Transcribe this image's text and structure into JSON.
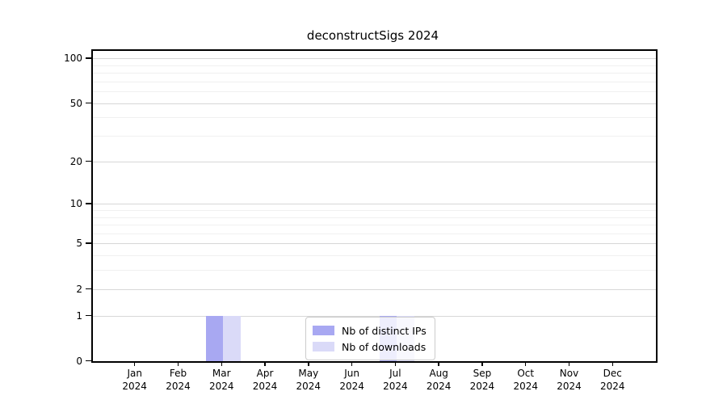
{
  "chart_data": {
    "type": "bar",
    "title": "deconstructSigs 2024",
    "x": {
      "months": [
        "Jan",
        "Feb",
        "Mar",
        "Apr",
        "May",
        "Jun",
        "Jul",
        "Aug",
        "Sep",
        "Oct",
        "Nov",
        "Dec"
      ],
      "year": "2024"
    },
    "series": [
      {
        "name": "Nb of distinct IPs",
        "color": "#a8a8f2",
        "values": [
          0,
          0,
          1,
          0,
          0,
          0,
          1,
          0,
          0,
          0,
          0,
          0
        ]
      },
      {
        "name": "Nb of downloads",
        "color": "#dadaf8",
        "values": [
          0,
          0,
          1,
          0,
          0,
          0,
          1,
          0,
          0,
          0,
          0,
          0
        ]
      }
    ],
    "y_scale": "log1p",
    "ylim": [
      0,
      100
    ],
    "y_major_ticks": [
      0,
      1,
      2,
      5,
      10,
      20,
      50,
      100
    ],
    "y_minor_ticks": [
      3,
      4,
      6,
      7,
      8,
      9,
      30,
      40,
      60,
      70,
      80,
      90
    ],
    "grid": "on",
    "legend_position": "lower center",
    "colors": {
      "major_grid": "#d7d7d7",
      "minor_grid": "#f0f0f0",
      "axis": "#000000"
    }
  }
}
